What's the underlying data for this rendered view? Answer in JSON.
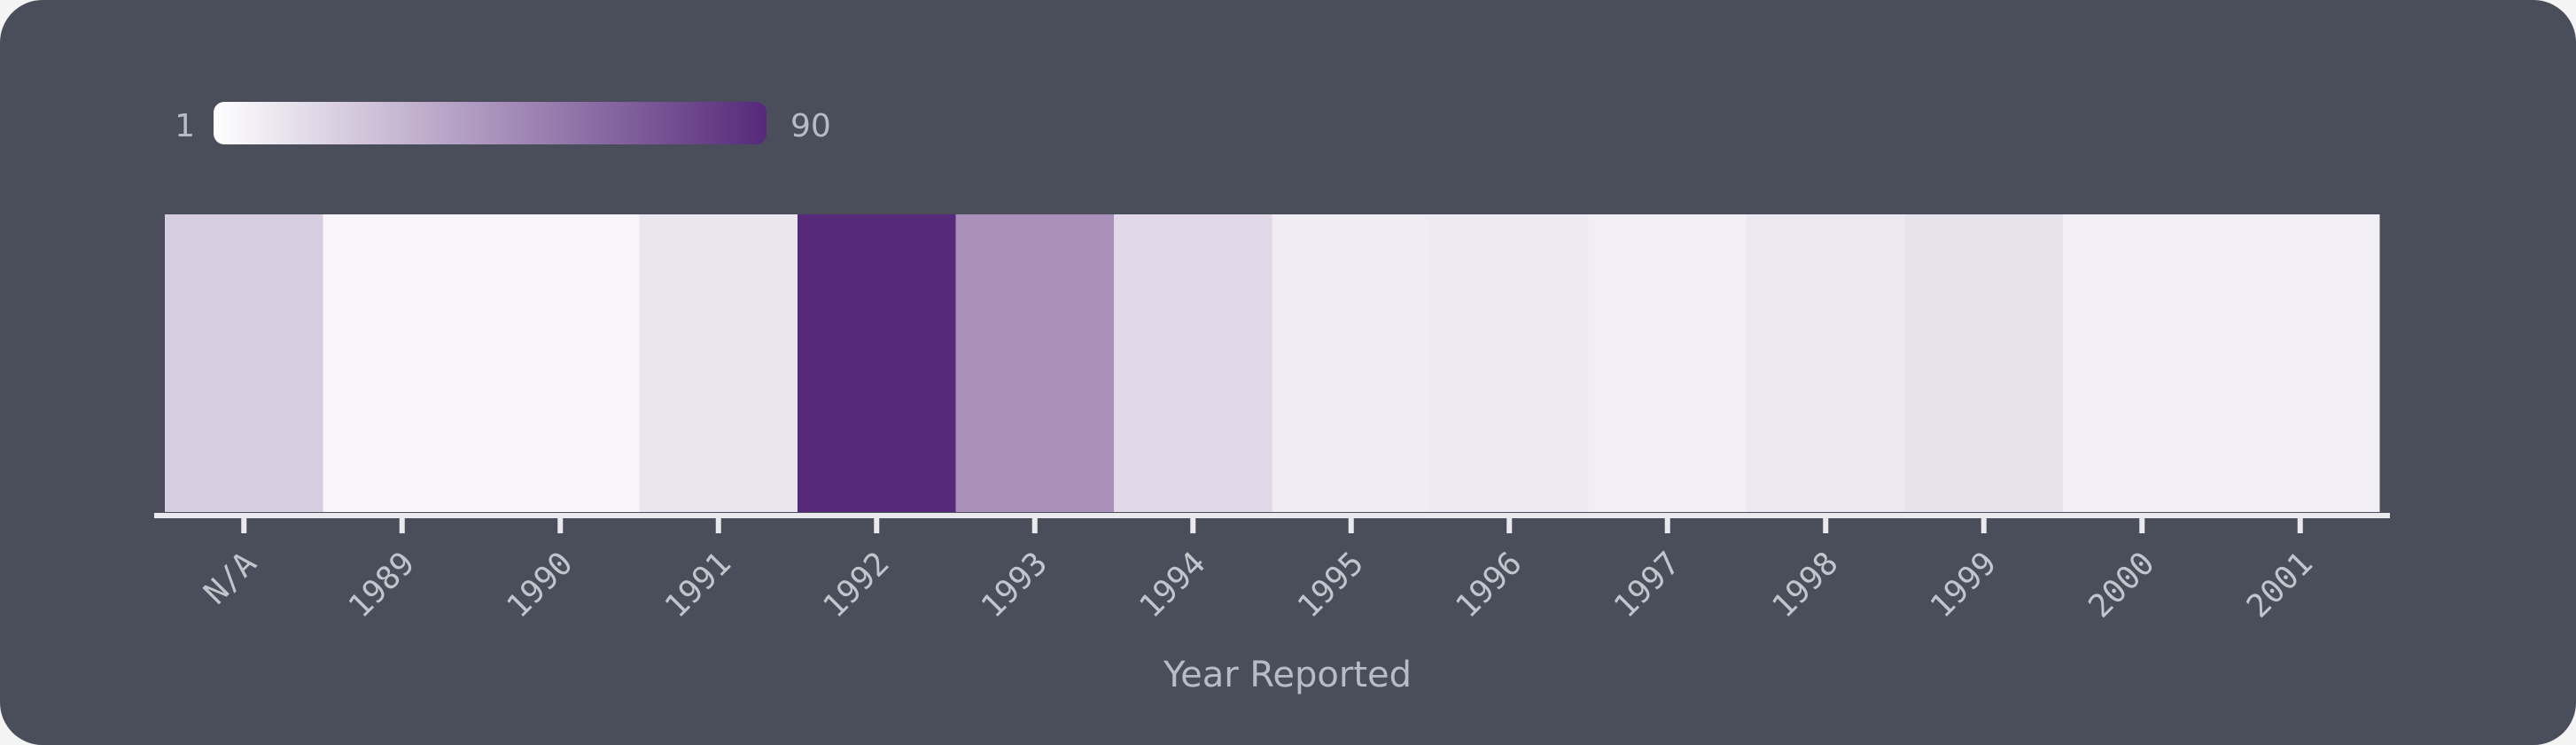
{
  "chart_data": {
    "type": "heatmap",
    "title": "",
    "xlabel": "Year Reported",
    "ylabel": "",
    "categories": [
      "N/A",
      "1989",
      "1990",
      "1991",
      "1992",
      "1993",
      "1994",
      "1995",
      "1996",
      "1997",
      "1998",
      "1999",
      "2000",
      "2001"
    ],
    "values": [
      22,
      5,
      5,
      12,
      90,
      47,
      17,
      9,
      10,
      8,
      11,
      13,
      8,
      8
    ],
    "color_scale": {
      "min": 1,
      "max": 90,
      "min_color": "#ffffff",
      "max_color": "#56297a"
    },
    "legend": {
      "min_label": "1",
      "max_label": "90",
      "placement": "top-left"
    },
    "grid": false
  },
  "colors": {
    "background": "#4a4e5a",
    "axis": "#e9e9ee",
    "text": "#b9bcc4"
  }
}
